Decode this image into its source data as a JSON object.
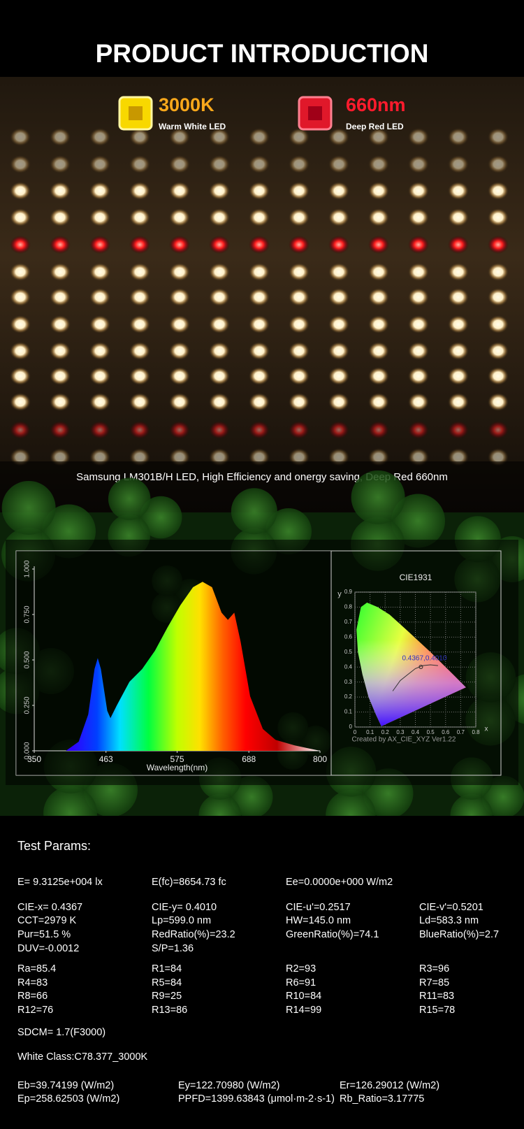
{
  "header": {
    "title": "PRODUCT INTRODUCTION"
  },
  "badges": [
    {
      "value": "3000K",
      "label": "Warm White LED"
    },
    {
      "value": "660nm",
      "label": "Deep Red LED"
    }
  ],
  "caption": "Samsung LM301B/H LED, High Efficiency and onergy saving,  Deep Red 660nm",
  "chart_data": [
    {
      "type": "area",
      "xlabel": "Wavelength(nm)",
      "x": [
        350,
        400,
        420,
        435,
        445,
        450,
        455,
        465,
        470,
        480,
        500,
        520,
        540,
        560,
        580,
        600,
        615,
        630,
        645,
        655,
        665,
        675,
        690,
        710,
        730,
        760,
        800
      ],
      "values": [
        0,
        0,
        0.05,
        0.2,
        0.45,
        0.51,
        0.45,
        0.22,
        0.18,
        0.25,
        0.38,
        0.45,
        0.55,
        0.68,
        0.8,
        0.9,
        0.93,
        0.9,
        0.76,
        0.72,
        0.76,
        0.6,
        0.3,
        0.12,
        0.06,
        0.03,
        0
      ],
      "xlim": [
        350,
        800
      ],
      "xticks": [
        350,
        463,
        575,
        688,
        800
      ],
      "ylim": [
        0,
        1
      ],
      "yticks": [
        {
          "value": 0,
          "label": "0.000"
        },
        {
          "value": 0.25,
          "label": "0.250"
        },
        {
          "value": 0.5,
          "label": "0.500"
        },
        {
          "value": 0.75,
          "label": "0.750"
        },
        {
          "value": 1,
          "label": "1.000"
        }
      ]
    },
    {
      "type": "scatter",
      "title": "CIE1931",
      "xlabel": "x",
      "ylabel": "y",
      "x": [
        0.4367
      ],
      "values": [
        0.401
      ],
      "annotation": "0.4367,0.4010",
      "xlim": [
        0,
        0.8
      ],
      "xticks": [
        0,
        0.1,
        0.2,
        0.3,
        0.4,
        0.5,
        0.6,
        0.7,
        0.8
      ],
      "ylim": [
        0,
        0.9
      ],
      "yticks": [
        0,
        0.1,
        0.2,
        0.3,
        0.4,
        0.5,
        0.6,
        0.7,
        0.8,
        0.9
      ],
      "footer": "Created by AX_CIE_XYZ Ver1.22",
      "grid": true
    }
  ],
  "params": {
    "title": "Test Params:",
    "groups": [
      [
        [
          "E=  9.3125e+004 lx",
          "E(fc)=8654.73 fc",
          "Ee=0.0000e+000 W/m2"
        ]
      ],
      [
        [
          "CIE-x= 0.4367",
          "CIE-y= 0.4010",
          "CIE-u'=0.2517",
          "CIE-v'=0.5201"
        ],
        [
          "CCT=2979 K",
          "Lp=599.0 nm",
          "HW=145.0 nm",
          "Ld=583.3 nm"
        ],
        [
          "Pur=51.5 %",
          "RedRatio(%)=23.2",
          "GreenRatio(%)=74.1",
          "BlueRatio(%)=2.7"
        ],
        [
          "DUV=-0.0012",
          "S/P=1.36"
        ]
      ],
      [
        [
          "Ra=85.4",
          "R1=84",
          "R2=93",
          "R3=96"
        ],
        [
          "R4=83",
          "R5=84",
          "R6=91",
          "R7=85"
        ],
        [
          "R8=66",
          "R9=25",
          "R10=84",
          "R11=83"
        ],
        [
          "R12=76",
          "R13=86",
          "R14=99",
          "R15=78"
        ]
      ],
      [
        [
          "SDCM= 1.7(F3000)"
        ]
      ],
      [
        [
          "White Class:C78.377_3000K"
        ]
      ],
      [
        [
          "Eb=39.74199 (W/m2)",
          "Ey=122.70980 (W/m2)",
          "Er=126.29012 (W/m2)"
        ],
        [
          "Ep=258.62503 (W/m2)",
          "PPFD=1399.63843 (μmol·m-2·s-1)",
          "Rb_Ratio=3.17775"
        ]
      ]
    ]
  }
}
